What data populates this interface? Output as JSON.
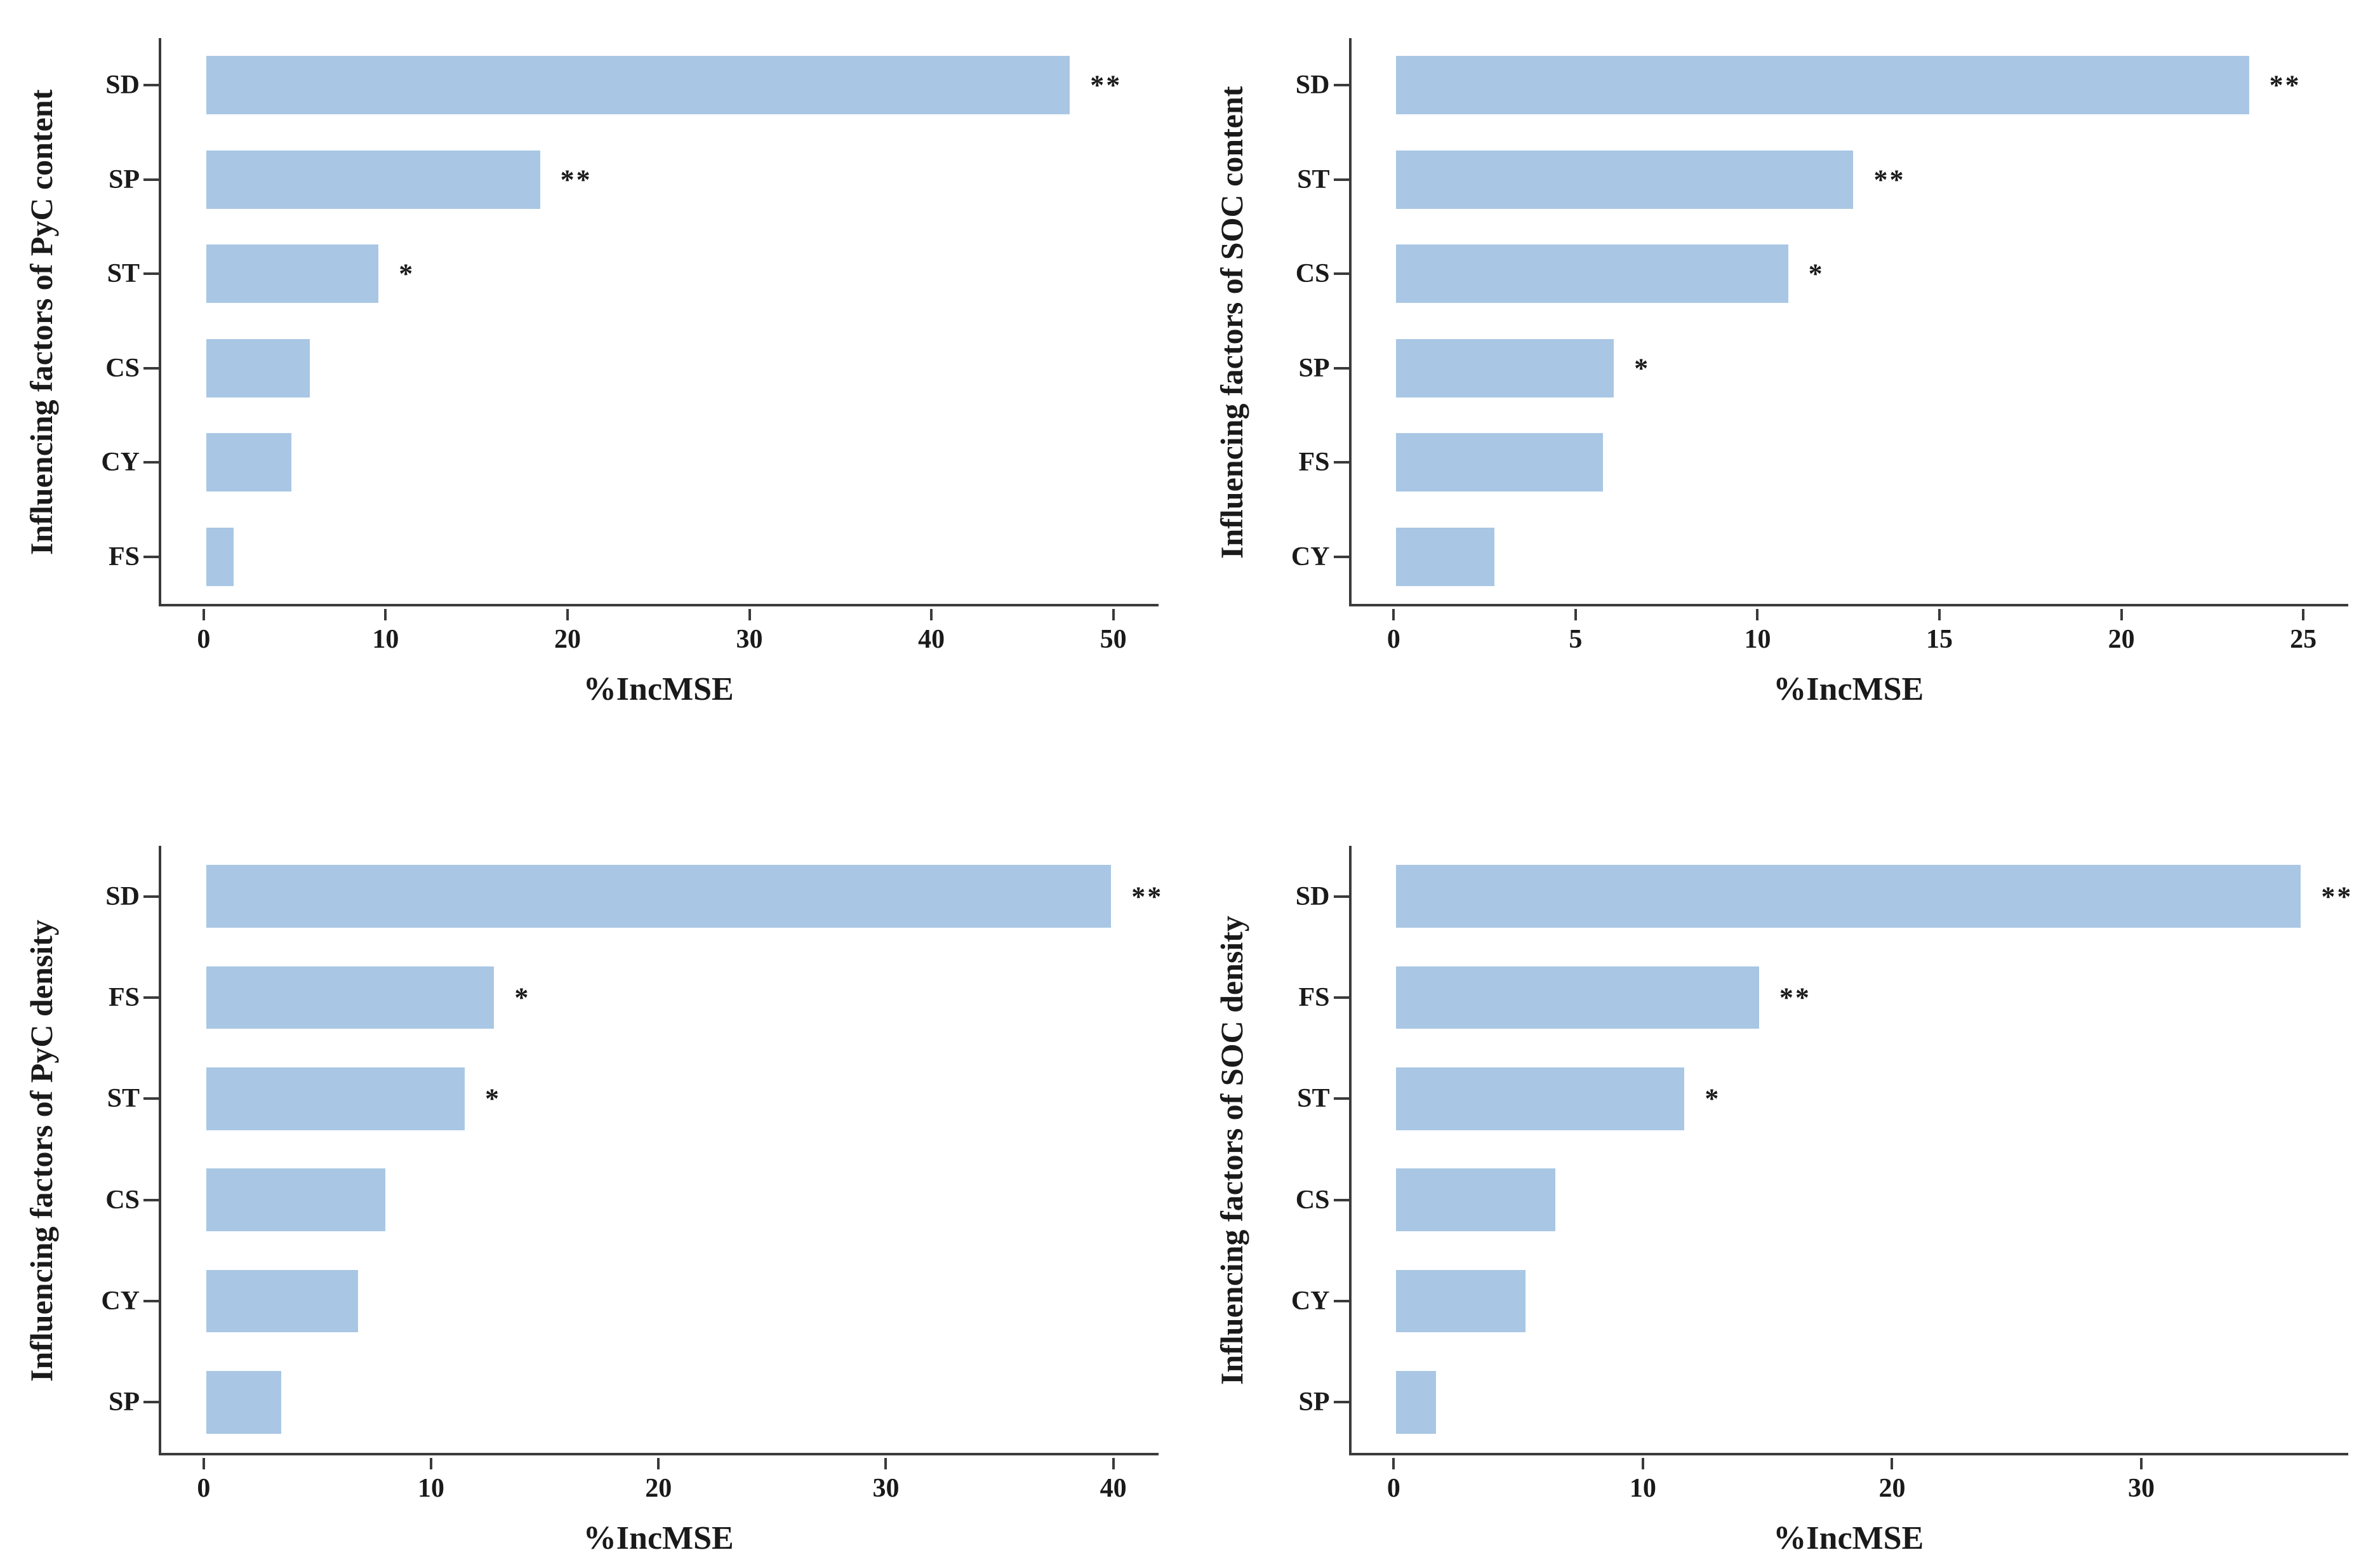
{
  "figure": {
    "description": "Four-panel horizontal bar figure of random-forest variable importance",
    "panel_count": 4
  },
  "colors": {
    "bar_fill": "#a9c7e4",
    "axis_line": "#3b3b3b",
    "text": "#1a1a1a",
    "background": "#ffffff"
  },
  "chart_data": [
    {
      "type": "bar",
      "orientation": "horizontal",
      "title": "",
      "ylabel": "Influencing factors of PyC content",
      "xlabel": "%IncMSE",
      "categories": [
        "SD",
        "SP",
        "ST",
        "CS",
        "CY",
        "FS"
      ],
      "values": [
        47.6,
        18.4,
        9.5,
        5.7,
        4.7,
        1.5
      ],
      "significance": [
        "**",
        "**",
        "*",
        "",
        "",
        ""
      ],
      "xticks": [
        0,
        10,
        20,
        30,
        40,
        50
      ],
      "xlim": [
        0,
        50
      ],
      "grid": false,
      "legend": false
    },
    {
      "type": "bar",
      "orientation": "horizontal",
      "title": "",
      "ylabel": "Influencing factors of SOC content",
      "xlabel": "%IncMSE",
      "categories": [
        "SD",
        "ST",
        "CS",
        "SP",
        "FS",
        "CY"
      ],
      "values": [
        23.5,
        12.6,
        10.8,
        6.0,
        5.7,
        2.7
      ],
      "significance": [
        "**",
        "**",
        "*",
        "*",
        "",
        ""
      ],
      "xticks": [
        0,
        5,
        10,
        15,
        20,
        25
      ],
      "xlim": [
        0,
        25
      ],
      "grid": false,
      "legend": false
    },
    {
      "type": "bar",
      "orientation": "horizontal",
      "title": "",
      "ylabel": "Influencing factors of PyC density",
      "xlabel": "%IncMSE",
      "categories": [
        "SD",
        "FS",
        "ST",
        "CS",
        "CY",
        "SP"
      ],
      "values": [
        39.9,
        12.7,
        11.4,
        7.9,
        6.7,
        3.3
      ],
      "significance": [
        "**",
        "*",
        "*",
        "",
        "",
        ""
      ],
      "xticks": [
        0,
        10,
        20,
        30,
        40
      ],
      "xlim": [
        0,
        40
      ],
      "grid": false,
      "legend": false
    },
    {
      "type": "bar",
      "orientation": "horizontal",
      "title": "",
      "ylabel": "Influencing factors of SOC density",
      "xlabel": "%IncMSE",
      "categories": [
        "SD",
        "FS",
        "ST",
        "CS",
        "CY",
        "SP"
      ],
      "values": [
        36.4,
        14.6,
        11.6,
        6.4,
        5.2,
        1.6
      ],
      "significance": [
        "**",
        "**",
        "*",
        "",
        "",
        ""
      ],
      "xticks": [
        0,
        10,
        20,
        30
      ],
      "xlim": [
        0,
        36.5
      ],
      "grid": false,
      "legend": false
    }
  ]
}
